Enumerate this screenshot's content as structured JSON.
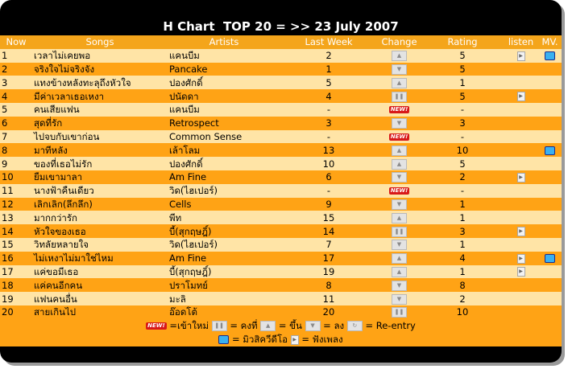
{
  "title": "H Chart  TOP 20 = >> 23 July 2007",
  "headers": [
    "Now",
    "Songs",
    "Artists",
    "Last Week",
    "Change",
    "Rating",
    "listen",
    "MV."
  ],
  "rows": [
    {
      "now": "1",
      "song": "เวลาไม่เคยพอ",
      "artist": "แคนบีม",
      "last": "2",
      "change": "up",
      "rating": "5",
      "listen": true,
      "mv": true
    },
    {
      "now": "2",
      "song": "จริงใจไม่จริงจัง",
      "artist": "Pancake",
      "last": "1",
      "change": "down",
      "rating": "5",
      "listen": false,
      "mv": false
    },
    {
      "now": "3",
      "song": "แทงข้างหลังทะลุถึงหัวใจ",
      "artist": "ปองศักดิ์",
      "last": "5",
      "change": "up",
      "rating": "1",
      "listen": false,
      "mv": false
    },
    {
      "now": "4",
      "song": "มีค่าเวลาเธอเหงา",
      "artist": "ปนัดดา",
      "last": "4",
      "change": "same",
      "rating": "5",
      "listen": true,
      "mv": false
    },
    {
      "now": "5",
      "song": "คนเสียแฟน",
      "artist": "แคนบีม",
      "last": "-",
      "change": "new",
      "rating": "-",
      "listen": false,
      "mv": false
    },
    {
      "now": "6",
      "song": "สุดที่รัก",
      "artist": "Retrospect",
      "last": "3",
      "change": "down",
      "rating": "3",
      "listen": false,
      "mv": false
    },
    {
      "now": "7",
      "song": "ไปจบกับเขาก่อน",
      "artist": "Common Sense",
      "last": "-",
      "change": "new",
      "rating": "-",
      "listen": false,
      "mv": false
    },
    {
      "now": "8",
      "song": "มาทีหลัง",
      "artist": "เล้าโลม",
      "last": "13",
      "change": "up",
      "rating": "10",
      "listen": false,
      "mv": true
    },
    {
      "now": "9",
      "song": "ของที่เธอไม่รัก",
      "artist": "ปองศักดิ์",
      "last": "10",
      "change": "up",
      "rating": "5",
      "listen": false,
      "mv": false
    },
    {
      "now": "10",
      "song": "ยืมเขามาลา",
      "artist": "Am Fine",
      "last": "6",
      "change": "down",
      "rating": "2",
      "listen": true,
      "mv": false
    },
    {
      "now": "11",
      "song": "นางฟ้าคืนเดียว",
      "artist": "วิด(ไฮเปอร์)",
      "last": "-",
      "change": "new",
      "rating": "-",
      "listen": false,
      "mv": false
    },
    {
      "now": "12",
      "song": "เลิกเลิก(ลึกลึก)",
      "artist": "Cells",
      "last": "9",
      "change": "down",
      "rating": "1",
      "listen": false,
      "mv": false
    },
    {
      "now": "13",
      "song": "มากกว่ารัก",
      "artist": "พีท",
      "last": "15",
      "change": "up",
      "rating": "1",
      "listen": false,
      "mv": false
    },
    {
      "now": "14",
      "song": "หัวใจของเธอ",
      "artist": "บี้(สุกฤษฎิ์)",
      "last": "14",
      "change": "same",
      "rating": "3",
      "listen": true,
      "mv": false
    },
    {
      "now": "15",
      "song": "วิทลัยหลายใจ",
      "artist": "วิด(ไฮเปอร์)",
      "last": "7",
      "change": "down",
      "rating": "1",
      "listen": false,
      "mv": false
    },
    {
      "now": "16",
      "song": "ไม่เหงาไม่มาใช่ไหม",
      "artist": "Am Fine",
      "last": "17",
      "change": "up",
      "rating": "4",
      "listen": true,
      "mv": true
    },
    {
      "now": "17",
      "song": "แค่ขอมีเธอ",
      "artist": "บี้(สุกฤษฎิ์)",
      "last": "19",
      "change": "up",
      "rating": "1",
      "listen": true,
      "mv": false
    },
    {
      "now": "18",
      "song": "แค่คนอีกคน",
      "artist": "ปราโมทย์",
      "last": "8",
      "change": "down",
      "rating": "8",
      "listen": false,
      "mv": false
    },
    {
      "now": "19",
      "song": "แฟนคนอื่น",
      "artist": "มะลิ",
      "last": "11",
      "change": "down",
      "rating": "2",
      "listen": false,
      "mv": false
    },
    {
      "now": "20",
      "song": "สายเกินไป",
      "artist": "อ๊อดโต้",
      "last": "20",
      "change": "same",
      "rating": "10",
      "listen": false,
      "mv": false
    }
  ],
  "legend": {
    "new_badge": "NEW!",
    "new_label": "=เข้าใหม่",
    "same_label": "= คงที่",
    "up_label": "= ขึ้น",
    "down_label": "= ลง",
    "reentry_label": "= Re-entry",
    "mv_label": "= มิวสิควีดีโอ",
    "listen_label": "= ฟังเพลง"
  },
  "icons": {
    "up": "arrow-up-icon",
    "down": "arrow-down-icon",
    "same": "pause-icon",
    "reentry": "reentry-icon",
    "listen": "play-icon",
    "mv": "tv-icon"
  },
  "colors": {
    "header": "#f4a51b",
    "row_light": "#ffe4a6",
    "row_dark": "#ffa315",
    "frame": "#000000",
    "new_badge": "#d81818"
  }
}
